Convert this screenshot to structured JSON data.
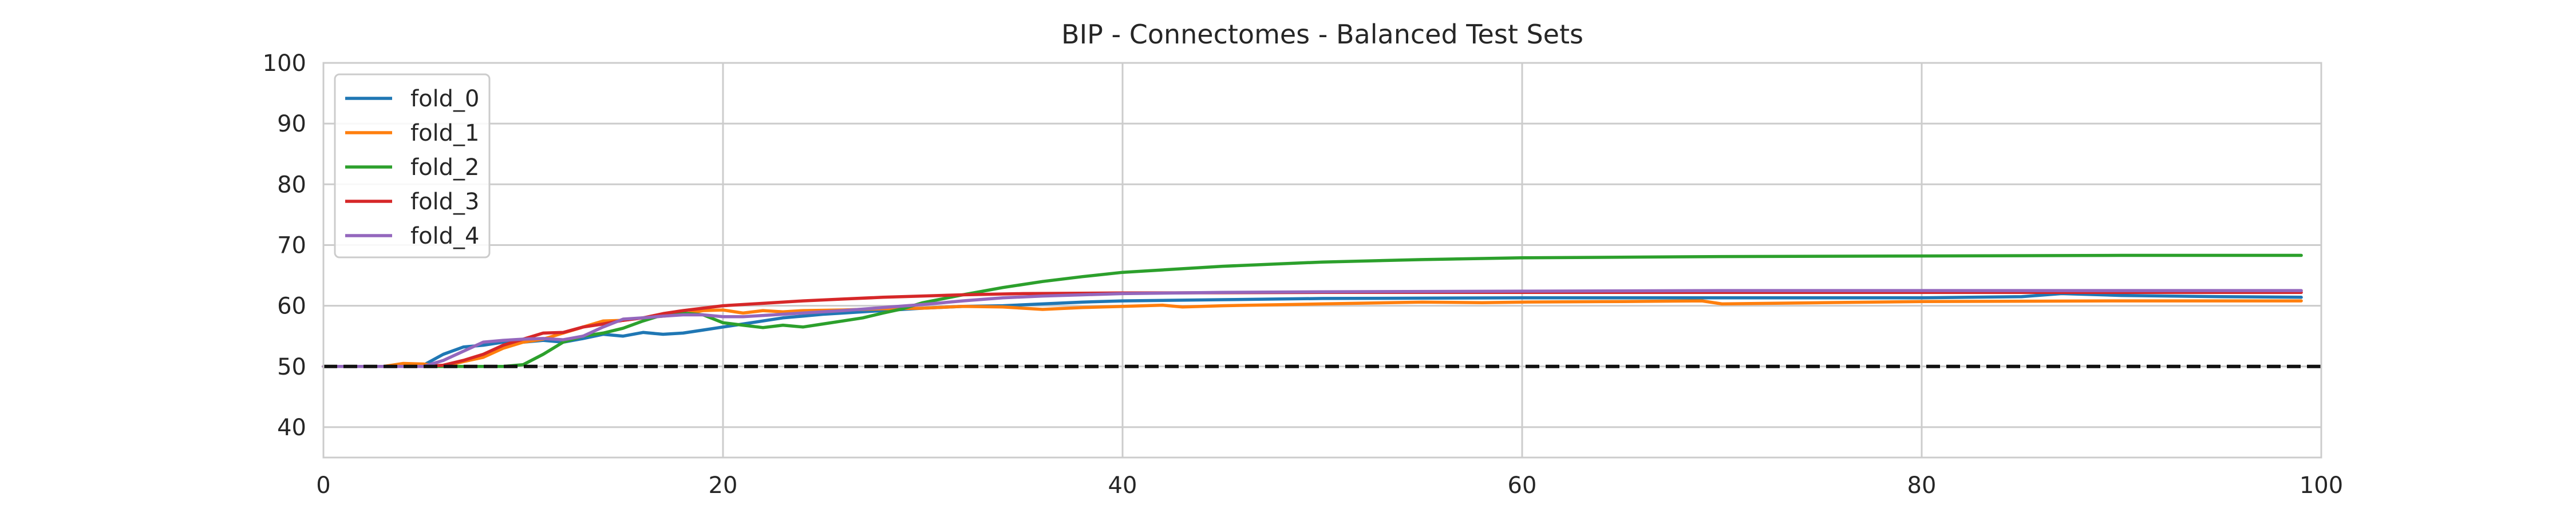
{
  "chart_data": {
    "type": "line",
    "title": "BIP - Connectomes - Balanced Test Sets",
    "xlabel": "",
    "ylabel": "",
    "xlim": [
      0,
      100
    ],
    "ylim": [
      35,
      100
    ],
    "xticks": [
      0,
      20,
      40,
      60,
      80,
      100
    ],
    "yticks": [
      40,
      50,
      60,
      70,
      80,
      90,
      100
    ],
    "grid": true,
    "legend_position": "top-left",
    "baseline": {
      "y": 50,
      "style": "dashed",
      "color": "#111111"
    },
    "series": [
      {
        "name": "fold_0",
        "color": "#1f77b4",
        "points": [
          [
            0,
            50
          ],
          [
            4,
            50
          ],
          [
            5,
            50.2
          ],
          [
            6,
            52
          ],
          [
            7,
            53.2
          ],
          [
            8,
            53.5
          ],
          [
            9,
            54
          ],
          [
            10,
            54
          ],
          [
            11,
            54.3
          ],
          [
            12,
            54
          ],
          [
            13,
            54.6
          ],
          [
            14,
            55.3
          ],
          [
            15,
            55
          ],
          [
            16,
            55.6
          ],
          [
            17,
            55.3
          ],
          [
            18,
            55.5
          ],
          [
            19,
            56
          ],
          [
            20,
            56.5
          ],
          [
            21,
            57
          ],
          [
            22,
            57.5
          ],
          [
            23,
            58
          ],
          [
            24,
            58.3
          ],
          [
            25,
            58.6
          ],
          [
            26,
            58.8
          ],
          [
            28,
            59.2
          ],
          [
            30,
            59.6
          ],
          [
            32,
            59.9
          ],
          [
            34,
            60
          ],
          [
            36,
            60.3
          ],
          [
            38,
            60.6
          ],
          [
            40,
            60.8
          ],
          [
            45,
            61
          ],
          [
            50,
            61.2
          ],
          [
            60,
            61.3
          ],
          [
            70,
            61.3
          ],
          [
            80,
            61.3
          ],
          [
            85,
            61.5
          ],
          [
            87,
            62
          ],
          [
            90,
            61.7
          ],
          [
            95,
            61.5
          ],
          [
            99,
            61.4
          ]
        ]
      },
      {
        "name": "fold_1",
        "color": "#ff7f0e",
        "points": [
          [
            0,
            50
          ],
          [
            3,
            50
          ],
          [
            4,
            50.5
          ],
          [
            5,
            50.4
          ],
          [
            6,
            50
          ],
          [
            7,
            50.8
          ],
          [
            8,
            51.5
          ],
          [
            9,
            53
          ],
          [
            10,
            54
          ],
          [
            11,
            54.5
          ],
          [
            12,
            55.5
          ],
          [
            13,
            56.5
          ],
          [
            14,
            57.5
          ],
          [
            15,
            57.6
          ],
          [
            16,
            58
          ],
          [
            17,
            58.3
          ],
          [
            18,
            58.6
          ],
          [
            19,
            59.2
          ],
          [
            20,
            59.3
          ],
          [
            21,
            58.8
          ],
          [
            22,
            59.2
          ],
          [
            23,
            59
          ],
          [
            24,
            59.2
          ],
          [
            26,
            59.3
          ],
          [
            28,
            59.5
          ],
          [
            30,
            59.6
          ],
          [
            32,
            59.9
          ],
          [
            34,
            59.8
          ],
          [
            36,
            59.4
          ],
          [
            38,
            59.7
          ],
          [
            40,
            59.9
          ],
          [
            42,
            60.1
          ],
          [
            43,
            59.8
          ],
          [
            45,
            60
          ],
          [
            50,
            60.3
          ],
          [
            55,
            60.6
          ],
          [
            58,
            60.5
          ],
          [
            60,
            60.6
          ],
          [
            65,
            60.7
          ],
          [
            69,
            60.8
          ],
          [
            70,
            60.3
          ],
          [
            75,
            60.5
          ],
          [
            80,
            60.7
          ],
          [
            90,
            60.8
          ],
          [
            99,
            60.8
          ]
        ]
      },
      {
        "name": "fold_2",
        "color": "#2ca02c",
        "points": [
          [
            0,
            50
          ],
          [
            9,
            50
          ],
          [
            10,
            50.3
          ],
          [
            11,
            52
          ],
          [
            12,
            54
          ],
          [
            13,
            55
          ],
          [
            14,
            55.5
          ],
          [
            15,
            56.3
          ],
          [
            16,
            57.5
          ],
          [
            17,
            58.5
          ],
          [
            18,
            58.8
          ],
          [
            19,
            58.5
          ],
          [
            20,
            57.2
          ],
          [
            21,
            56.8
          ],
          [
            22,
            56.4
          ],
          [
            23,
            56.8
          ],
          [
            24,
            56.5
          ],
          [
            25,
            57
          ],
          [
            26,
            57.5
          ],
          [
            27,
            58
          ],
          [
            28,
            58.8
          ],
          [
            29,
            59.5
          ],
          [
            30,
            60.5
          ],
          [
            32,
            61.8
          ],
          [
            34,
            63
          ],
          [
            36,
            64
          ],
          [
            38,
            64.8
          ],
          [
            40,
            65.5
          ],
          [
            45,
            66.5
          ],
          [
            50,
            67.2
          ],
          [
            55,
            67.6
          ],
          [
            60,
            67.9
          ],
          [
            70,
            68.1
          ],
          [
            80,
            68.2
          ],
          [
            90,
            68.3
          ],
          [
            99,
            68.3
          ]
        ]
      },
      {
        "name": "fold_3",
        "color": "#d62728",
        "points": [
          [
            0,
            50
          ],
          [
            5,
            50
          ],
          [
            6,
            50.2
          ],
          [
            7,
            51
          ],
          [
            8,
            52
          ],
          [
            9,
            53.5
          ],
          [
            10,
            54.5
          ],
          [
            11,
            55.5
          ],
          [
            12,
            55.6
          ],
          [
            13,
            56.5
          ],
          [
            14,
            57
          ],
          [
            15,
            57.6
          ],
          [
            16,
            58
          ],
          [
            17,
            58.7
          ],
          [
            18,
            59.2
          ],
          [
            19,
            59.6
          ],
          [
            20,
            60
          ],
          [
            22,
            60.4
          ],
          [
            24,
            60.8
          ],
          [
            26,
            61.1
          ],
          [
            28,
            61.4
          ],
          [
            30,
            61.6
          ],
          [
            32,
            61.8
          ],
          [
            35,
            62
          ],
          [
            40,
            62.1
          ],
          [
            50,
            62.2
          ],
          [
            60,
            62.2
          ],
          [
            70,
            62.2
          ],
          [
            80,
            62.2
          ],
          [
            90,
            62.2
          ],
          [
            99,
            62.2
          ]
        ]
      },
      {
        "name": "fold_4",
        "color": "#9467bd",
        "points": [
          [
            0,
            50
          ],
          [
            5,
            50
          ],
          [
            6,
            51
          ],
          [
            7,
            52.5
          ],
          [
            8,
            54
          ],
          [
            9,
            54.3
          ],
          [
            10,
            54.5
          ],
          [
            11,
            54.6
          ],
          [
            12,
            54.4
          ],
          [
            13,
            55
          ],
          [
            14,
            56.5
          ],
          [
            15,
            57.8
          ],
          [
            16,
            58
          ],
          [
            17,
            58.3
          ],
          [
            18,
            58.5
          ],
          [
            19,
            58.5
          ],
          [
            20,
            58.2
          ],
          [
            21,
            58.2
          ],
          [
            22,
            58.4
          ],
          [
            24,
            58.8
          ],
          [
            26,
            59.2
          ],
          [
            28,
            59.7
          ],
          [
            30,
            60.2
          ],
          [
            32,
            60.8
          ],
          [
            34,
            61.3
          ],
          [
            36,
            61.6
          ],
          [
            38,
            61.8
          ],
          [
            40,
            62
          ],
          [
            45,
            62.2
          ],
          [
            50,
            62.3
          ],
          [
            60,
            62.4
          ],
          [
            70,
            62.5
          ],
          [
            80,
            62.5
          ],
          [
            90,
            62.5
          ],
          [
            99,
            62.5
          ]
        ]
      }
    ]
  }
}
